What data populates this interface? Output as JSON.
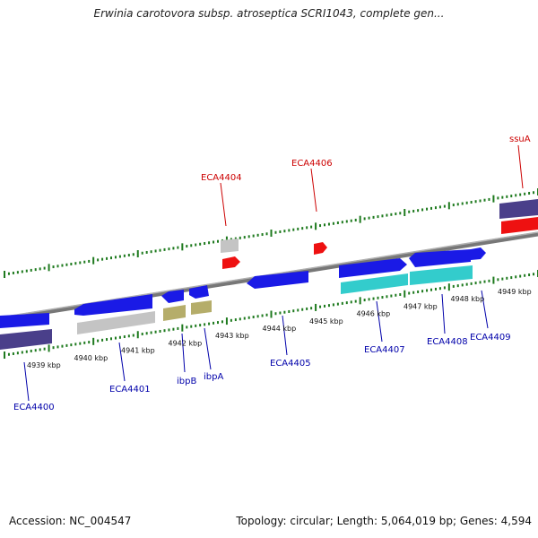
{
  "title": "Erwinia carotovora subsp. atroseptica SCRI1043, complete gen...",
  "footer": {
    "accession": "Accession: NC_004547",
    "info": "Topology: circular; Length: 5,064,019 bp; Genes: 4,594"
  },
  "colors": {
    "blue_gene": "#1a1ae6",
    "dark_blue_gene": "#4a3f8a",
    "grey_gene": "#c4c4c4",
    "olive_gene": "#b5ad6a",
    "cyan_gene": "#33cccc",
    "red_gene": "#ee1111",
    "backbone": "#8a8a8a",
    "tick_green": "#1e7a1e",
    "label_blue": "#0000aa",
    "label_red": "#cc0000"
  },
  "kbp_labels": [
    "4939 kbp",
    "4940 kbp",
    "4941 kbp",
    "4942 kbp",
    "4943 kbp",
    "4944 kbp",
    "4945 kbp",
    "4946 kbp",
    "4947 kbp",
    "4948 kbp",
    "4949 kbp"
  ],
  "gene_labels_bottom": [
    "ECA4400",
    "ECA4401",
    "ibpB",
    "ibpA",
    "ECA4405",
    "ECA4407",
    "ECA4408",
    "ECA4409"
  ],
  "gene_labels_top": [
    "ECA4404",
    "ECA4406",
    "ssuA"
  ]
}
